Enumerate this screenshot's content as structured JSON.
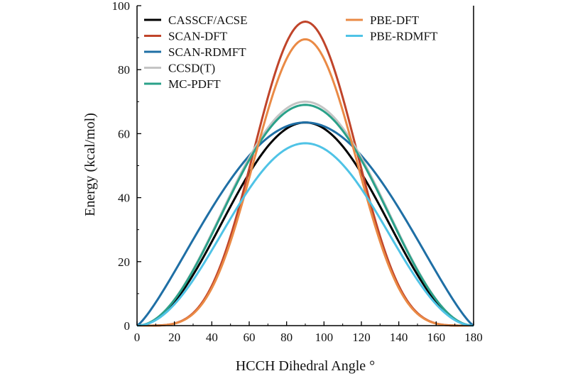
{
  "chart_data": {
    "type": "line",
    "title": "",
    "xlabel": "HCCH Dihedral Angle °",
    "ylabel": "Energy (kcal/mol)",
    "xlim": [
      0,
      180
    ],
    "ylim": [
      0,
      100
    ],
    "xticks": [
      0,
      20,
      40,
      60,
      80,
      100,
      120,
      140,
      160,
      180
    ],
    "yticks": [
      0,
      20,
      40,
      60,
      80,
      100
    ],
    "grid": false,
    "legend_position": "top",
    "series": [
      {
        "name": "CASSCF/ACSE",
        "color": "#000000",
        "peak": 63.5,
        "shape": "smooth"
      },
      {
        "name": "SCAN-DFT",
        "color": "#c0442a",
        "peak": 95.0,
        "shape": "cusp"
      },
      {
        "name": "SCAN-RDMFT",
        "color": "#1f6fa5",
        "peak": 63.5,
        "shape": "broad"
      },
      {
        "name": "CCSD(T)",
        "color": "#c4c4c4",
        "peak": 70.0,
        "shape": "smooth"
      },
      {
        "name": "MC-PDFT",
        "color": "#2aa189",
        "peak": 69.0,
        "shape": "smooth"
      },
      {
        "name": "PBE-DFT",
        "color": "#ea8a45",
        "peak": 89.5,
        "shape": "cusp"
      },
      {
        "name": "PBE-RDMFT",
        "color": "#4fc3e6",
        "peak": 57.0,
        "shape": "smooth"
      }
    ]
  }
}
